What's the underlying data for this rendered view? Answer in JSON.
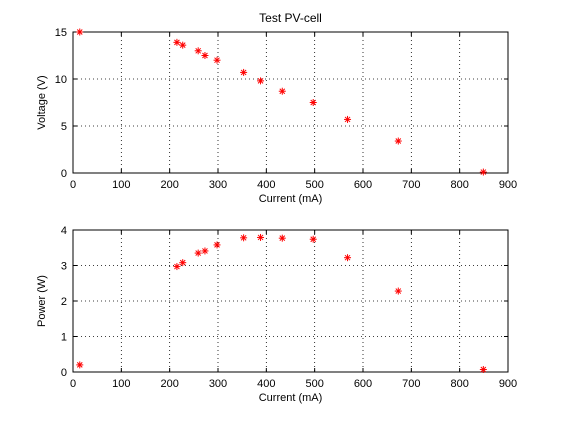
{
  "chart_data": [
    {
      "type": "scatter",
      "title": "Test PV-cell",
      "xlabel": "Current (mA)",
      "ylabel": "Voltage (V)",
      "xlim": [
        0,
        900
      ],
      "ylim": [
        0,
        15
      ],
      "xticks": [
        0,
        100,
        200,
        300,
        400,
        500,
        600,
        700,
        800,
        900
      ],
      "yticks": [
        0,
        5,
        10,
        15
      ],
      "grid": true,
      "marker": "*",
      "marker_color": "#ff0000",
      "x": [
        14,
        215,
        227,
        259,
        273,
        298,
        353,
        388,
        433,
        497,
        568,
        673,
        849
      ],
      "y": [
        15.0,
        13.9,
        13.6,
        13.0,
        12.5,
        12.0,
        10.7,
        9.8,
        8.7,
        7.5,
        5.7,
        3.4,
        0.1
      ]
    },
    {
      "type": "scatter",
      "title": "",
      "xlabel": "Current (mA)",
      "ylabel": "Power (W)",
      "xlim": [
        0,
        900
      ],
      "ylim": [
        0,
        4
      ],
      "xticks": [
        0,
        100,
        200,
        300,
        400,
        500,
        600,
        700,
        800,
        900
      ],
      "yticks": [
        0,
        1,
        2,
        3,
        4
      ],
      "grid": true,
      "marker": "*",
      "marker_color": "#ff0000",
      "x": [
        14,
        215,
        227,
        259,
        273,
        298,
        353,
        388,
        433,
        497,
        568,
        673,
        849
      ],
      "y": [
        0.2,
        2.97,
        3.08,
        3.35,
        3.41,
        3.58,
        3.78,
        3.79,
        3.77,
        3.74,
        3.22,
        2.28,
        0.07
      ]
    }
  ]
}
